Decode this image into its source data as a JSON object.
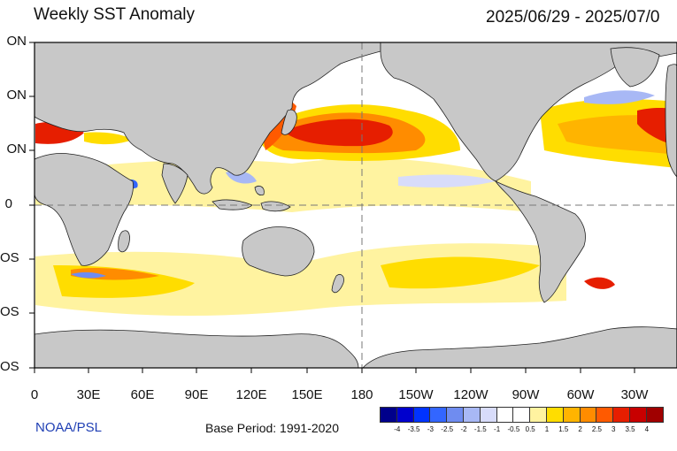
{
  "title": "Weekly SST Anomaly",
  "date_range": "2025/06/29 - 2025/07/0",
  "lat_labels": [
    "ON",
    "ON",
    "ON",
    "0",
    "OS",
    "OS",
    "OS"
  ],
  "lon_labels": [
    "0",
    "30E",
    "60E",
    "90E",
    "120E",
    "150E",
    "180",
    "150W",
    "120W",
    "90W",
    "60W",
    "30W"
  ],
  "credit": "NOAA/PSL",
  "base_period": "Base Period: 1991-2020",
  "colorbar": {
    "colors": [
      "#00008b",
      "#0000cd",
      "#0033ff",
      "#3366ff",
      "#6f8cf0",
      "#a8b8f5",
      "#d8dcfa",
      "#ffffff",
      "#ffffff",
      "#fff3a0",
      "#ffdd00",
      "#ffb400",
      "#ff8c00",
      "#ff5a00",
      "#e61e00",
      "#c80000",
      "#a00000"
    ],
    "tick_labels": [
      "-4",
      "-3.5",
      "-3",
      "-2.5",
      "-2",
      "-1.5",
      "-1",
      "-0.5",
      "0.5",
      "1",
      "1.5",
      "2",
      "2.5",
      "3",
      "3.5",
      "4"
    ]
  },
  "map": {
    "land_color": "#c8c8c8",
    "ocean_color": "#ffffff",
    "warm_colors": [
      "#fff3a0",
      "#ffdd00",
      "#ffb400",
      "#ff8c00",
      "#ff5a00",
      "#e61e00"
    ],
    "cool_colors": [
      "#d8dcfa",
      "#a8b8f5",
      "#6f8cf0",
      "#3366ff"
    ]
  }
}
